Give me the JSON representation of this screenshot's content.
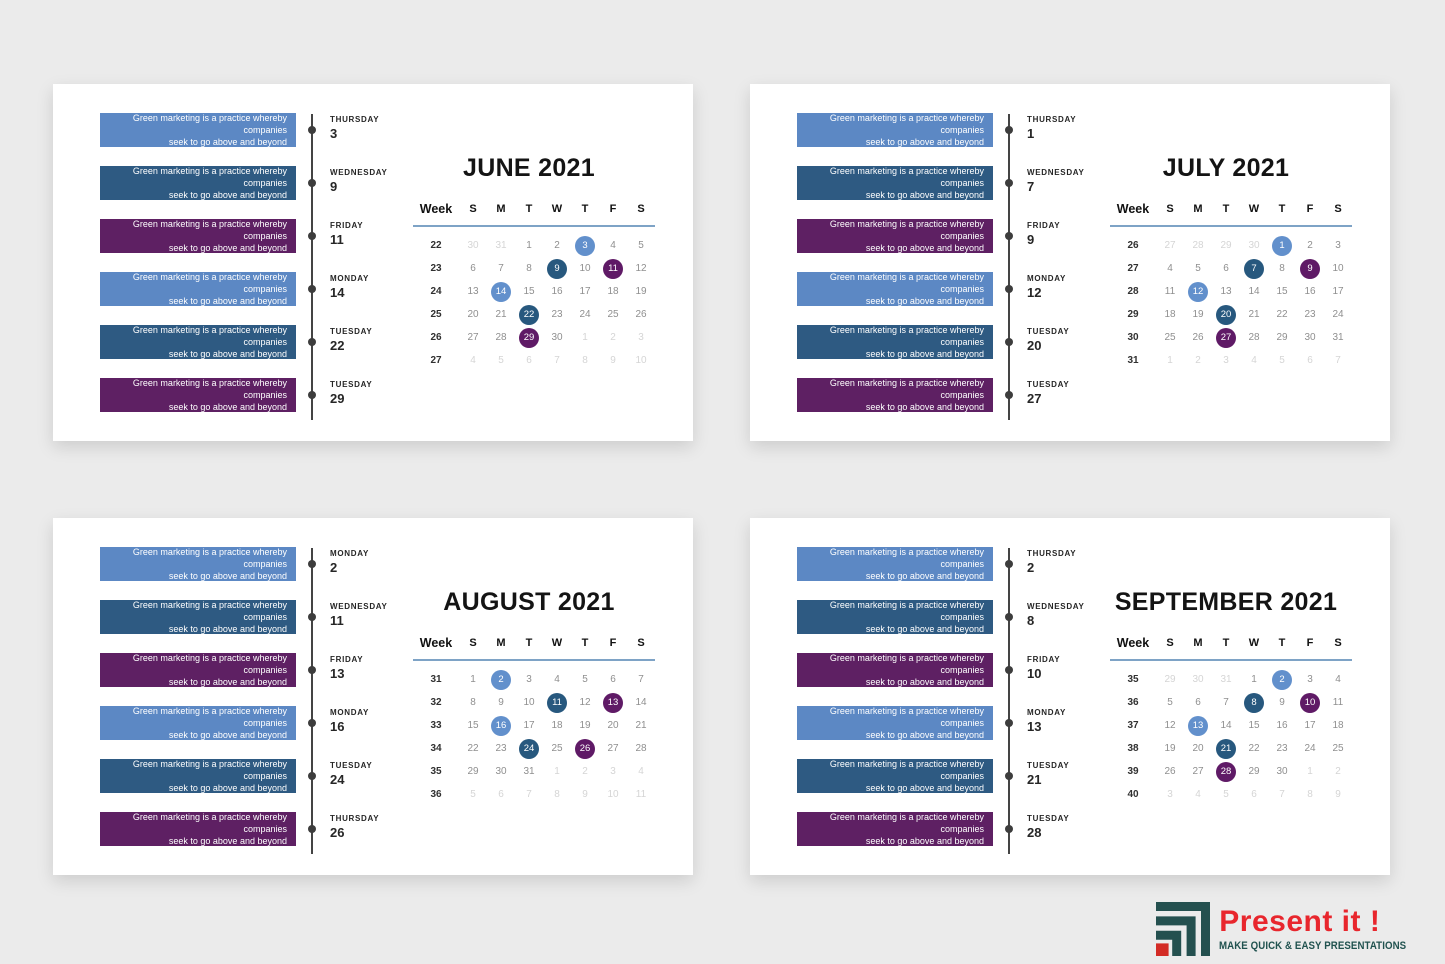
{
  "slide": {
    "background": "#ebebeb"
  },
  "event": {
    "line1": "Green marketing is a practice whereby companies",
    "line2": "seek to go above and beyond"
  },
  "colors": {
    "bar": {
      "lb": "#5c88c4",
      "db": "#2e5a82",
      "pu": "#5e2063"
    },
    "circle": {
      "lb": "#6290cc",
      "db": "#27587e",
      "pu": "#5f1a66"
    },
    "rule": "#7ea3c6",
    "timeline": "#444444"
  },
  "calendar": {
    "week_label": "Week",
    "day_headers": [
      "S",
      "M",
      "T",
      "W",
      "T",
      "F",
      "S"
    ]
  },
  "months": [
    {
      "title": "JUNE 2021",
      "events": [
        {
          "day": "THURSDAY",
          "date": "3",
          "color": "lb"
        },
        {
          "day": "WEDNESDAY",
          "date": "9",
          "color": "db"
        },
        {
          "day": "FRIDAY",
          "date": "11",
          "color": "pu"
        },
        {
          "day": "MONDAY",
          "date": "14",
          "color": "lb"
        },
        {
          "day": "TUESDAY",
          "date": "22",
          "color": "db"
        },
        {
          "day": "TUESDAY",
          "date": "29",
          "color": "pu"
        }
      ],
      "weeks": [
        {
          "num": "22",
          "days": [
            {
              "d": "30",
              "t": "out"
            },
            {
              "d": "31",
              "t": "out"
            },
            {
              "d": "1"
            },
            {
              "d": "2"
            },
            {
              "d": "3",
              "t": "lb"
            },
            {
              "d": "4"
            },
            {
              "d": "5"
            }
          ]
        },
        {
          "num": "23",
          "days": [
            {
              "d": "6"
            },
            {
              "d": "7"
            },
            {
              "d": "8"
            },
            {
              "d": "9",
              "t": "db"
            },
            {
              "d": "10"
            },
            {
              "d": "11",
              "t": "pu"
            },
            {
              "d": "12"
            }
          ]
        },
        {
          "num": "24",
          "days": [
            {
              "d": "13"
            },
            {
              "d": "14",
              "t": "lb"
            },
            {
              "d": "15"
            },
            {
              "d": "16"
            },
            {
              "d": "17"
            },
            {
              "d": "18"
            },
            {
              "d": "19"
            }
          ]
        },
        {
          "num": "25",
          "days": [
            {
              "d": "20"
            },
            {
              "d": "21"
            },
            {
              "d": "22",
              "t": "db"
            },
            {
              "d": "23"
            },
            {
              "d": "24"
            },
            {
              "d": "25"
            },
            {
              "d": "26"
            }
          ]
        },
        {
          "num": "26",
          "days": [
            {
              "d": "27"
            },
            {
              "d": "28"
            },
            {
              "d": "29",
              "t": "pu"
            },
            {
              "d": "30"
            },
            {
              "d": "1",
              "t": "out"
            },
            {
              "d": "2",
              "t": "out"
            },
            {
              "d": "3",
              "t": "out"
            }
          ]
        },
        {
          "num": "27",
          "days": [
            {
              "d": "4",
              "t": "out"
            },
            {
              "d": "5",
              "t": "out"
            },
            {
              "d": "6",
              "t": "out"
            },
            {
              "d": "7",
              "t": "out"
            },
            {
              "d": "8",
              "t": "out"
            },
            {
              "d": "9",
              "t": "out"
            },
            {
              "d": "10",
              "t": "out"
            }
          ]
        }
      ]
    },
    {
      "title": "JULY 2021",
      "events": [
        {
          "day": "THURSDAY",
          "date": "1",
          "color": "lb"
        },
        {
          "day": "WEDNESDAY",
          "date": "7",
          "color": "db"
        },
        {
          "day": "FRIDAY",
          "date": "9",
          "color": "pu"
        },
        {
          "day": "MONDAY",
          "date": "12",
          "color": "lb"
        },
        {
          "day": "TUESDAY",
          "date": "20",
          "color": "db"
        },
        {
          "day": "TUESDAY",
          "date": "27",
          "color": "pu"
        }
      ],
      "weeks": [
        {
          "num": "26",
          "days": [
            {
              "d": "27",
              "t": "out"
            },
            {
              "d": "28",
              "t": "out"
            },
            {
              "d": "29",
              "t": "out"
            },
            {
              "d": "30",
              "t": "out"
            },
            {
              "d": "1",
              "t": "lb"
            },
            {
              "d": "2"
            },
            {
              "d": "3"
            }
          ]
        },
        {
          "num": "27",
          "days": [
            {
              "d": "4"
            },
            {
              "d": "5"
            },
            {
              "d": "6"
            },
            {
              "d": "7",
              "t": "db"
            },
            {
              "d": "8"
            },
            {
              "d": "9",
              "t": "pu"
            },
            {
              "d": "10"
            }
          ]
        },
        {
          "num": "28",
          "days": [
            {
              "d": "11"
            },
            {
              "d": "12",
              "t": "lb"
            },
            {
              "d": "13"
            },
            {
              "d": "14"
            },
            {
              "d": "15"
            },
            {
              "d": "16"
            },
            {
              "d": "17"
            }
          ]
        },
        {
          "num": "29",
          "days": [
            {
              "d": "18"
            },
            {
              "d": "19"
            },
            {
              "d": "20",
              "t": "db"
            },
            {
              "d": "21"
            },
            {
              "d": "22"
            },
            {
              "d": "23"
            },
            {
              "d": "24"
            }
          ]
        },
        {
          "num": "30",
          "days": [
            {
              "d": "25"
            },
            {
              "d": "26"
            },
            {
              "d": "27",
              "t": "pu"
            },
            {
              "d": "28"
            },
            {
              "d": "29"
            },
            {
              "d": "30"
            },
            {
              "d": "31"
            }
          ]
        },
        {
          "num": "31",
          "days": [
            {
              "d": "1",
              "t": "out"
            },
            {
              "d": "2",
              "t": "out"
            },
            {
              "d": "3",
              "t": "out"
            },
            {
              "d": "4",
              "t": "out"
            },
            {
              "d": "5",
              "t": "out"
            },
            {
              "d": "6",
              "t": "out"
            },
            {
              "d": "7",
              "t": "out"
            }
          ]
        }
      ]
    },
    {
      "title": "AUGUST 2021",
      "events": [
        {
          "day": "MONDAY",
          "date": "2",
          "color": "lb"
        },
        {
          "day": "WEDNESDAY",
          "date": "11",
          "color": "db"
        },
        {
          "day": "FRIDAY",
          "date": "13",
          "color": "pu"
        },
        {
          "day": "MONDAY",
          "date": "16",
          "color": "lb"
        },
        {
          "day": "TUESDAY",
          "date": "24",
          "color": "db"
        },
        {
          "day": "THURSDAY",
          "date": "26",
          "color": "pu"
        }
      ],
      "weeks": [
        {
          "num": "31",
          "days": [
            {
              "d": "1"
            },
            {
              "d": "2",
              "t": "lb"
            },
            {
              "d": "3"
            },
            {
              "d": "4"
            },
            {
              "d": "5"
            },
            {
              "d": "6"
            },
            {
              "d": "7"
            }
          ]
        },
        {
          "num": "32",
          "days": [
            {
              "d": "8"
            },
            {
              "d": "9"
            },
            {
              "d": "10"
            },
            {
              "d": "11",
              "t": "db"
            },
            {
              "d": "12"
            },
            {
              "d": "13",
              "t": "pu"
            },
            {
              "d": "14"
            }
          ]
        },
        {
          "num": "33",
          "days": [
            {
              "d": "15"
            },
            {
              "d": "16",
              "t": "lb"
            },
            {
              "d": "17"
            },
            {
              "d": "18"
            },
            {
              "d": "19"
            },
            {
              "d": "20"
            },
            {
              "d": "21"
            }
          ]
        },
        {
          "num": "34",
          "days": [
            {
              "d": "22"
            },
            {
              "d": "23"
            },
            {
              "d": "24",
              "t": "db"
            },
            {
              "d": "25"
            },
            {
              "d": "26",
              "t": "pu"
            },
            {
              "d": "27"
            },
            {
              "d": "28"
            }
          ]
        },
        {
          "num": "35",
          "days": [
            {
              "d": "29"
            },
            {
              "d": "30"
            },
            {
              "d": "31"
            },
            {
              "d": "1",
              "t": "out"
            },
            {
              "d": "2",
              "t": "out"
            },
            {
              "d": "3",
              "t": "out"
            },
            {
              "d": "4",
              "t": "out"
            }
          ]
        },
        {
          "num": "36",
          "days": [
            {
              "d": "5",
              "t": "out"
            },
            {
              "d": "6",
              "t": "out"
            },
            {
              "d": "7",
              "t": "out"
            },
            {
              "d": "8",
              "t": "out"
            },
            {
              "d": "9",
              "t": "out"
            },
            {
              "d": "10",
              "t": "out"
            },
            {
              "d": "11",
              "t": "out"
            }
          ]
        }
      ]
    },
    {
      "title": "SEPTEMBER 2021",
      "events": [
        {
          "day": "THURSDAY",
          "date": "2",
          "color": "lb"
        },
        {
          "day": "WEDNESDAY",
          "date": "8",
          "color": "db"
        },
        {
          "day": "FRIDAY",
          "date": "10",
          "color": "pu"
        },
        {
          "day": "MONDAY",
          "date": "13",
          "color": "lb"
        },
        {
          "day": "TUESDAY",
          "date": "21",
          "color": "db"
        },
        {
          "day": "TUESDAY",
          "date": "28",
          "color": "pu"
        }
      ],
      "weeks": [
        {
          "num": "35",
          "days": [
            {
              "d": "29",
              "t": "out"
            },
            {
              "d": "30",
              "t": "out"
            },
            {
              "d": "31",
              "t": "out"
            },
            {
              "d": "1"
            },
            {
              "d": "2",
              "t": "lb"
            },
            {
              "d": "3"
            },
            {
              "d": "4"
            }
          ]
        },
        {
          "num": "36",
          "days": [
            {
              "d": "5"
            },
            {
              "d": "6"
            },
            {
              "d": "7"
            },
            {
              "d": "8",
              "t": "db"
            },
            {
              "d": "9"
            },
            {
              "d": "10",
              "t": "pu"
            },
            {
              "d": "11"
            }
          ]
        },
        {
          "num": "37",
          "days": [
            {
              "d": "12"
            },
            {
              "d": "13",
              "t": "lb"
            },
            {
              "d": "14"
            },
            {
              "d": "15"
            },
            {
              "d": "16"
            },
            {
              "d": "17"
            },
            {
              "d": "18"
            }
          ]
        },
        {
          "num": "38",
          "days": [
            {
              "d": "19"
            },
            {
              "d": "20"
            },
            {
              "d": "21",
              "t": "db"
            },
            {
              "d": "22"
            },
            {
              "d": "23"
            },
            {
              "d": "24"
            },
            {
              "d": "25"
            }
          ]
        },
        {
          "num": "39",
          "days": [
            {
              "d": "26"
            },
            {
              "d": "27"
            },
            {
              "d": "28",
              "t": "pu"
            },
            {
              "d": "29"
            },
            {
              "d": "30"
            },
            {
              "d": "1",
              "t": "out"
            },
            {
              "d": "2",
              "t": "out"
            }
          ]
        },
        {
          "num": "40",
          "days": [
            {
              "d": "3",
              "t": "out"
            },
            {
              "d": "4",
              "t": "out"
            },
            {
              "d": "5",
              "t": "out"
            },
            {
              "d": "6",
              "t": "out"
            },
            {
              "d": "7",
              "t": "out"
            },
            {
              "d": "8",
              "t": "out"
            },
            {
              "d": "9",
              "t": "out"
            }
          ]
        }
      ]
    }
  ],
  "logo": {
    "name": "Present it !",
    "tagline": "MAKE QUICK & EASY PRESENTATIONS",
    "icon": "steps-chart-icon",
    "name_color": "#e8262d",
    "tagline_color": "#20524f",
    "icon_teal": "#24504f",
    "icon_red": "#d32b25"
  }
}
